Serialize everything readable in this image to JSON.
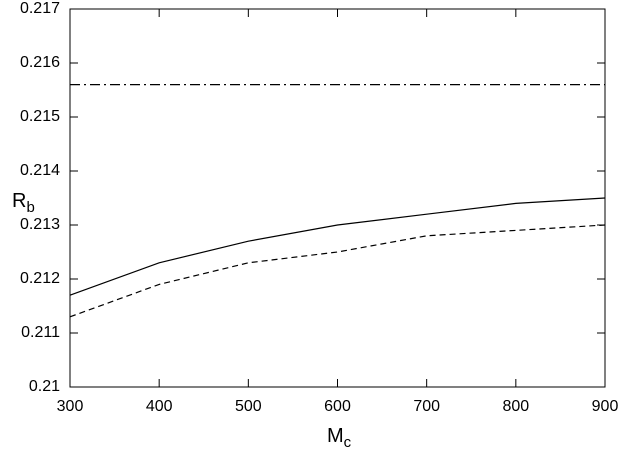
{
  "chart_data": {
    "type": "line",
    "xlabel": {
      "text": "M",
      "subscript": "c"
    },
    "ylabel": {
      "text": "R",
      "subscript": "b"
    },
    "x": [
      300,
      400,
      500,
      600,
      700,
      800,
      900
    ],
    "series": [
      {
        "color": "#000000",
        "dash": "solid",
        "values": [
          0.2117,
          0.2123,
          0.2127,
          0.213,
          0.2132,
          0.2134,
          0.2135
        ]
      },
      {
        "color": "#000000",
        "dash": "dashed",
        "values": [
          0.2113,
          0.2119,
          0.2123,
          0.2125,
          0.2128,
          0.2129,
          0.213
        ]
      },
      {
        "color": "#000000",
        "dash": "dashdot",
        "values": [
          0.2156,
          0.2156,
          0.2156,
          0.2156,
          0.2156,
          0.2156,
          0.2156
        ]
      }
    ],
    "xlim": [
      300,
      900
    ],
    "xticks": [
      300,
      400,
      500,
      600,
      700,
      800,
      900
    ],
    "ylim": [
      0.21,
      0.217
    ],
    "yticks": [
      0.21,
      0.211,
      0.212,
      0.213,
      0.214,
      0.215,
      0.216,
      0.217
    ],
    "grid": false
  }
}
